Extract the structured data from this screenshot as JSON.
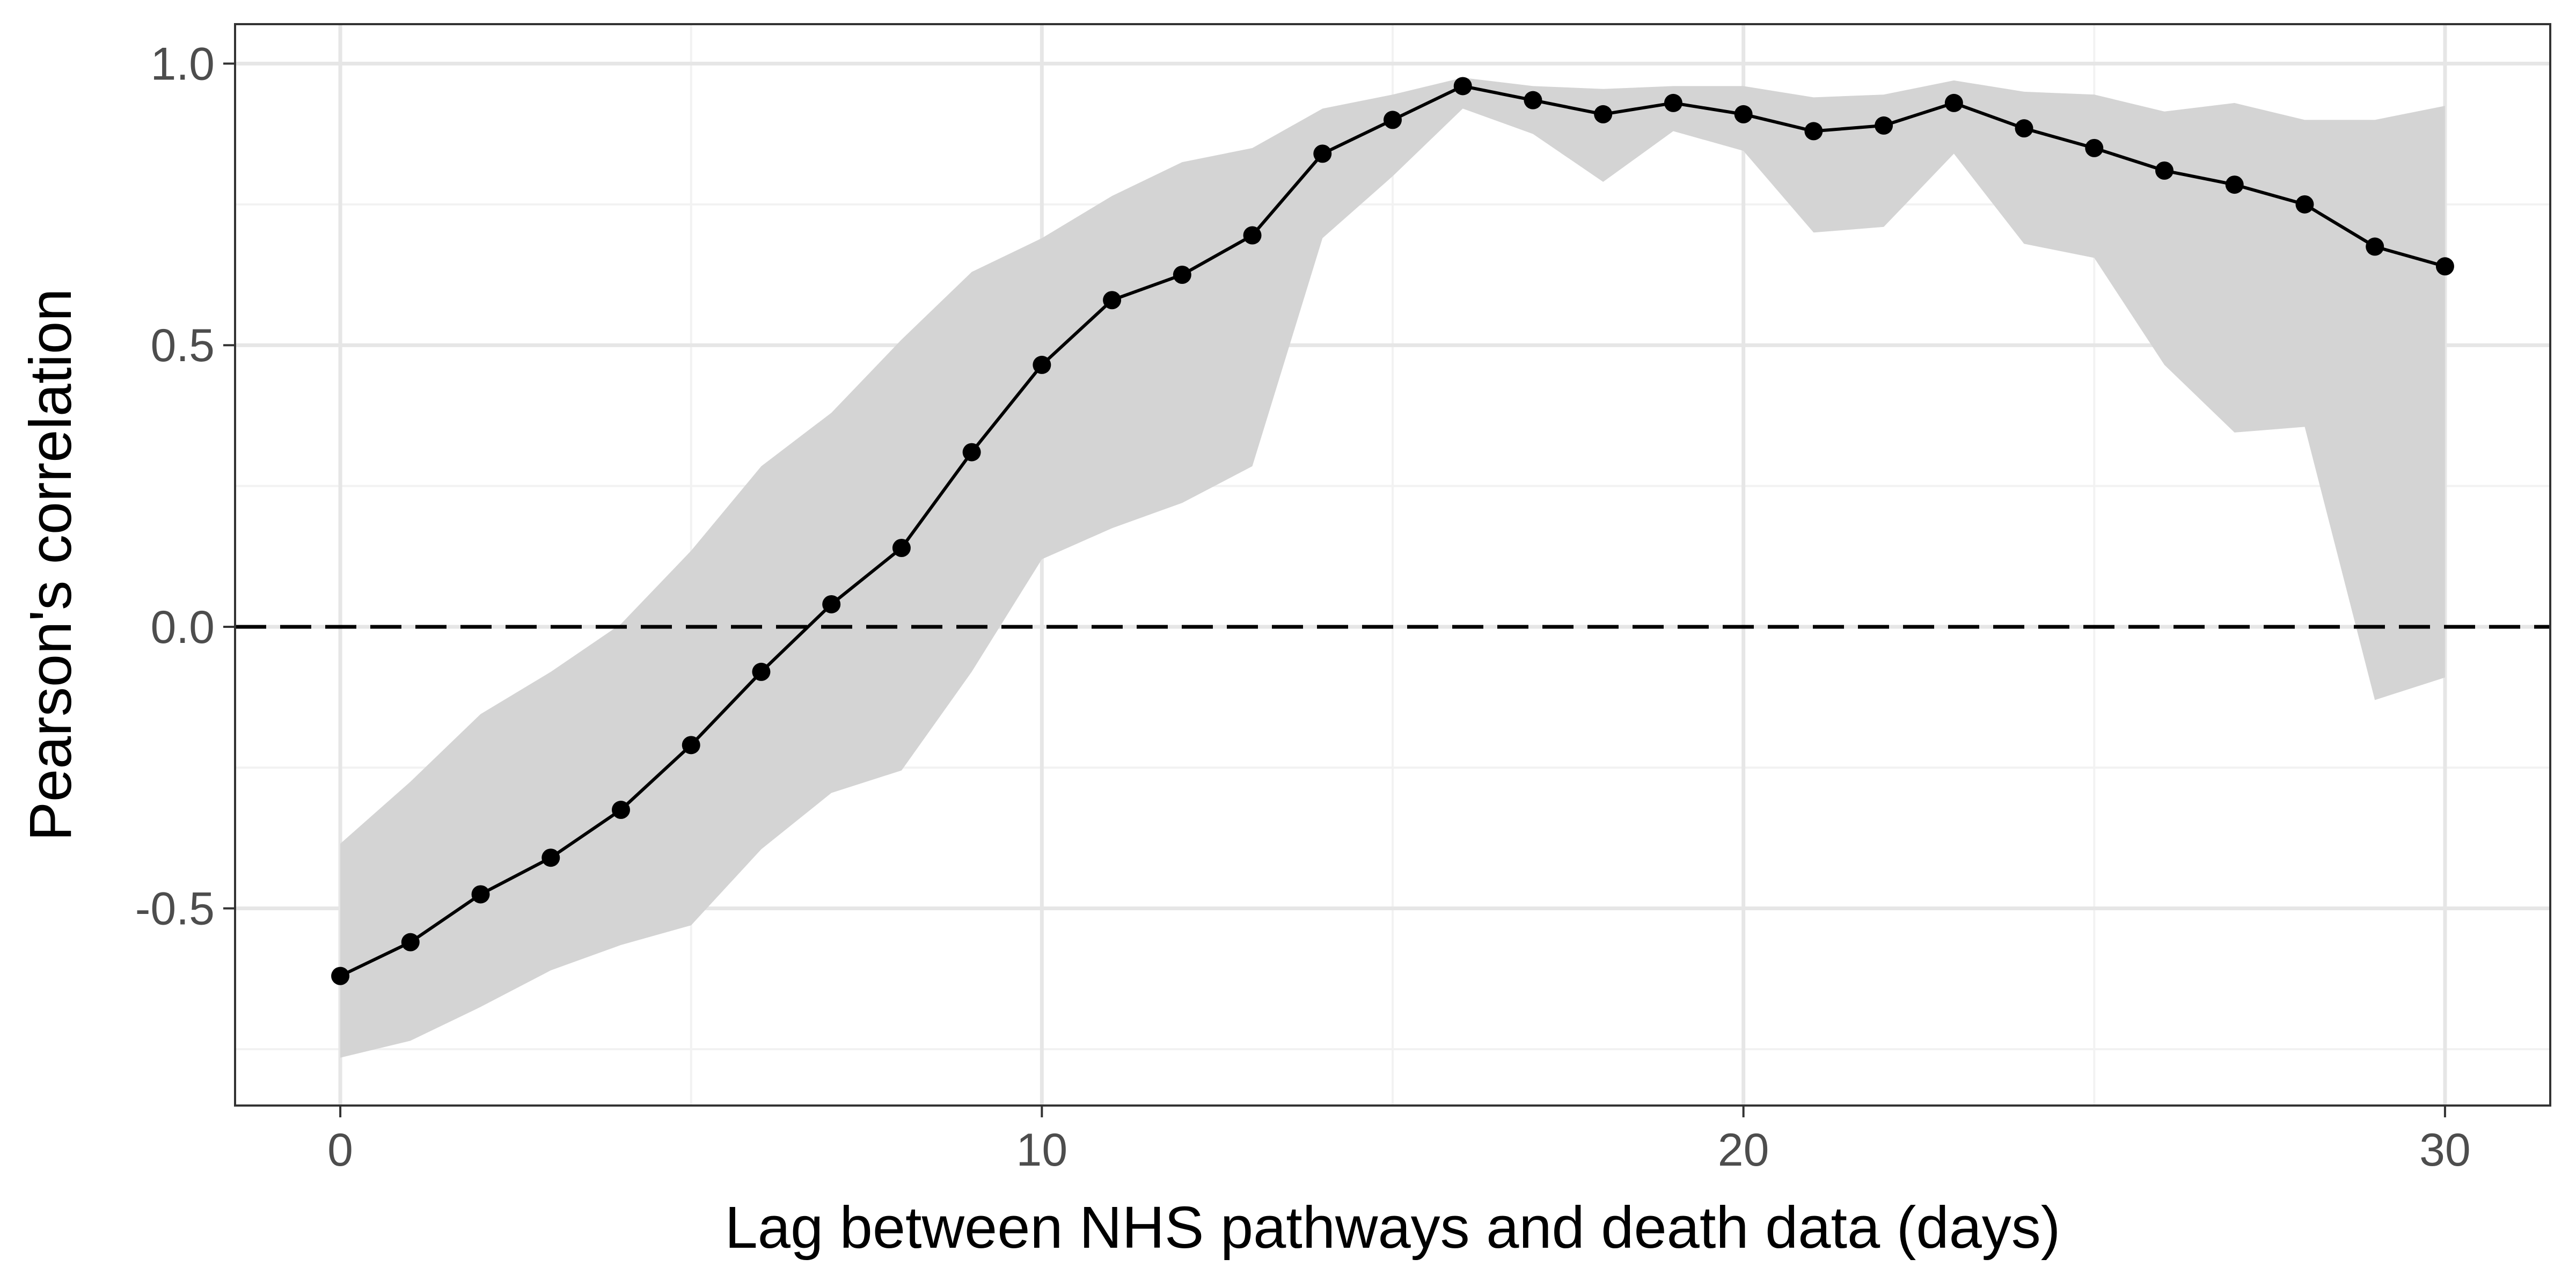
{
  "chart_data": {
    "type": "line",
    "title": "",
    "xlabel": "Lag between NHS pathways and death data (days)",
    "ylabel": "Pearson's correlation",
    "xlim": [
      -1.5,
      31.5
    ],
    "ylim": [
      -0.85,
      1.07
    ],
    "x_ticks": [
      0,
      10,
      20,
      30
    ],
    "x_tick_labels": [
      "0",
      "10",
      "20",
      "30"
    ],
    "y_ticks": [
      -0.5,
      0.0,
      0.5,
      1.0
    ],
    "y_tick_labels": [
      "-0.5",
      "0.0",
      "0.5",
      "1.0"
    ],
    "grid": true,
    "reference_line": {
      "y": 0,
      "style": "dashed"
    },
    "series": [
      {
        "x": [
          0,
          1,
          2,
          3,
          4,
          5,
          6,
          7,
          8,
          9,
          10,
          11,
          12,
          13,
          14,
          15,
          16,
          17,
          18,
          19,
          20,
          21,
          22,
          23,
          24,
          25,
          26,
          27,
          28,
          29,
          30
        ],
        "values": [
          -0.62,
          -0.56,
          -0.475,
          -0.41,
          -0.325,
          -0.21,
          -0.08,
          0.04,
          0.14,
          0.31,
          0.465,
          0.58,
          0.625,
          0.695,
          0.84,
          0.9,
          0.96,
          0.935,
          0.91,
          0.93,
          0.91,
          0.88,
          0.89,
          0.93,
          0.885,
          0.85,
          0.81,
          0.785,
          0.75,
          0.675,
          0.64
        ],
        "ci_lower": [
          -0.765,
          -0.735,
          -0.675,
          -0.61,
          -0.565,
          -0.53,
          -0.395,
          -0.295,
          -0.255,
          -0.08,
          0.12,
          0.175,
          0.22,
          0.285,
          0.69,
          0.8,
          0.92,
          0.875,
          0.79,
          0.88,
          0.845,
          0.7,
          0.71,
          0.84,
          0.68,
          0.655,
          0.465,
          0.345,
          0.355,
          -0.13,
          -0.09
        ],
        "ci_upper": [
          -0.385,
          -0.275,
          -0.155,
          -0.08,
          0.005,
          0.135,
          0.285,
          0.38,
          0.51,
          0.63,
          0.69,
          0.765,
          0.825,
          0.85,
          0.92,
          0.945,
          0.975,
          0.96,
          0.955,
          0.96,
          0.96,
          0.94,
          0.945,
          0.97,
          0.95,
          0.945,
          0.915,
          0.93,
          0.9,
          0.9,
          0.925
        ]
      }
    ],
    "colors": {
      "line": "#000000",
      "ribbon": "#d4d4d4",
      "grid_major": "#e6e6e6",
      "grid_minor": "#f2f2f2",
      "panel_border": "#333333"
    }
  }
}
